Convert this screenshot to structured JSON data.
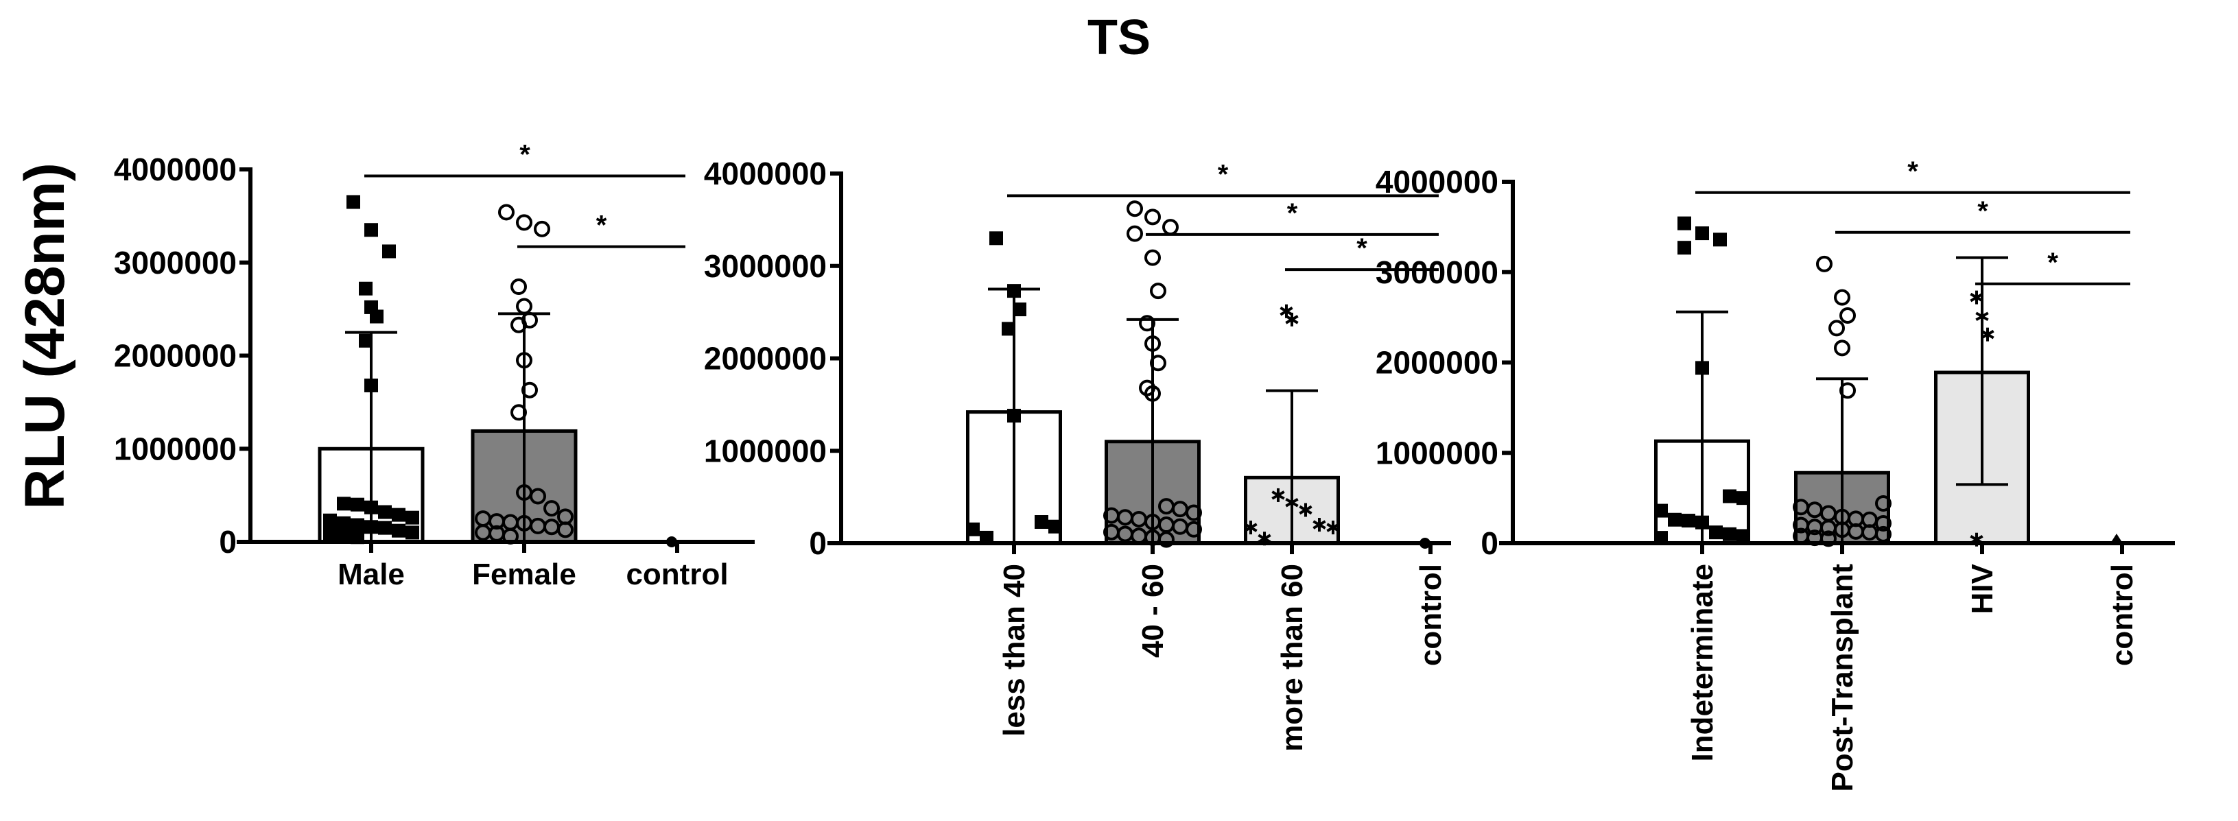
{
  "title": "TS",
  "y_axis_label": "RLU (428nm)",
  "colors": {
    "axis": "#000000",
    "bar_white": "#ffffff",
    "bar_dark_gray": "#808080",
    "bar_light_gray": "#e6e6e6"
  },
  "chart_data": [
    {
      "type": "bar",
      "panel": "sex",
      "title": "TS",
      "ylabel": "RLU (428nm)",
      "xlabel": "",
      "ylim": [
        0,
        4000000
      ],
      "yticks": [
        "0",
        "1000000",
        "2000000",
        "3000000",
        "4000000"
      ],
      "categories": [
        "Male",
        "Female",
        "control"
      ],
      "category_label_rotation": 0,
      "values": [
        1000000,
        1190000,
        0
      ],
      "error_upper": [
        2250000,
        2450000,
        0
      ],
      "fills": [
        "#ffffff",
        "#808080",
        "#ffffff"
      ],
      "marker": [
        "square-filled",
        "circle-open",
        "circle-filled"
      ],
      "points": [
        [
          3650000,
          3350000,
          3120000,
          2720000,
          2520000,
          2420000,
          2160000,
          1680000,
          410000,
          400000,
          370000,
          320000,
          290000,
          260000,
          230000,
          200000,
          180000,
          160000,
          150000,
          120000,
          100000,
          90000,
          60000,
          50000
        ],
        [
          3540000,
          3430000,
          3360000,
          2740000,
          2530000,
          2380000,
          2330000,
          1950000,
          1630000,
          1390000,
          530000,
          490000,
          360000,
          270000,
          250000,
          220000,
          210000,
          200000,
          170000,
          160000,
          130000,
          100000,
          90000,
          60000
        ],
        [
          0
        ]
      ],
      "significance": [
        {
          "from": "Male",
          "to": "control",
          "label": "*",
          "y": 3930000
        },
        {
          "from": "Female",
          "to": "control",
          "label": "*",
          "y": 3170000
        }
      ]
    },
    {
      "type": "bar",
      "panel": "age",
      "ylim": [
        0,
        4000000
      ],
      "yticks": [
        "0",
        "1000000",
        "2000000",
        "3000000",
        "4000000"
      ],
      "categories": [
        "less than 40",
        "40 - 60",
        "more than 60",
        "control"
      ],
      "category_label_rotation": -90,
      "values": [
        1420000,
        1100000,
        710000,
        0
      ],
      "error_upper": [
        2750000,
        2420000,
        1650000,
        0
      ],
      "fills": [
        "#ffffff",
        "#808080",
        "#e6e6e6",
        "#ffffff"
      ],
      "marker": [
        "square-filled",
        "circle-open",
        "asterisk",
        "circle-filled"
      ],
      "points": [
        [
          3300000,
          2730000,
          2530000,
          2320000,
          1380000,
          230000,
          180000,
          150000,
          60000
        ],
        [
          3620000,
          3530000,
          3420000,
          3350000,
          3090000,
          2730000,
          2380000,
          2160000,
          1950000,
          1680000,
          1620000,
          400000,
          370000,
          330000,
          300000,
          280000,
          260000,
          230000,
          200000,
          180000,
          150000,
          120000,
          100000,
          80000,
          60000,
          40000
        ],
        [
          2510000,
          2420000,
          520000,
          440000,
          360000,
          200000,
          170000,
          170000,
          50000
        ],
        [
          0
        ]
      ],
      "significance": [
        {
          "from": "less than 40",
          "to": "control",
          "label": "*",
          "y": 3760000
        },
        {
          "from": "40 - 60",
          "to": "control",
          "label": "*",
          "y": 3340000
        },
        {
          "from": "more than 60",
          "to": "control",
          "label": "*",
          "y": 2960000
        }
      ]
    },
    {
      "type": "bar",
      "panel": "condition",
      "ylim": [
        0,
        4000000
      ],
      "yticks": [
        "0",
        "1000000",
        "2000000",
        "3000000",
        "4000000"
      ],
      "categories": [
        "Indeterminate",
        "Post-Transplant",
        "HIV",
        "control"
      ],
      "category_label_rotation": -90,
      "values": [
        1130000,
        780000,
        1890000,
        0
      ],
      "error_upper": [
        2560000,
        1820000,
        3160000,
        0
      ],
      "error_lower": [
        null,
        null,
        650000,
        null
      ],
      "fills": [
        "#ffffff",
        "#808080",
        "#e6e6e6",
        "#ffffff"
      ],
      "marker": [
        "square-filled",
        "circle-open",
        "asterisk",
        "triangle-filled"
      ],
      "points": [
        [
          3540000,
          3430000,
          3360000,
          3270000,
          1940000,
          520000,
          500000,
          360000,
          260000,
          250000,
          230000,
          120000,
          100000,
          80000,
          60000
        ],
        [
          3090000,
          2720000,
          2520000,
          2380000,
          2160000,
          1690000,
          440000,
          400000,
          370000,
          330000,
          290000,
          270000,
          260000,
          220000,
          200000,
          180000,
          170000,
          150000,
          130000,
          120000,
          100000,
          80000,
          60000,
          50000
        ],
        [
          2720000,
          2510000,
          2310000,
          40000
        ],
        [
          0
        ]
      ],
      "significance": [
        {
          "from": "Indeterminate",
          "to": "control",
          "label": "*",
          "y": 3880000
        },
        {
          "from": "Post-Transplant",
          "to": "control",
          "label": "*",
          "y": 3440000
        },
        {
          "from": "HIV",
          "to": "control",
          "label": "*",
          "y": 2870000
        }
      ]
    }
  ]
}
